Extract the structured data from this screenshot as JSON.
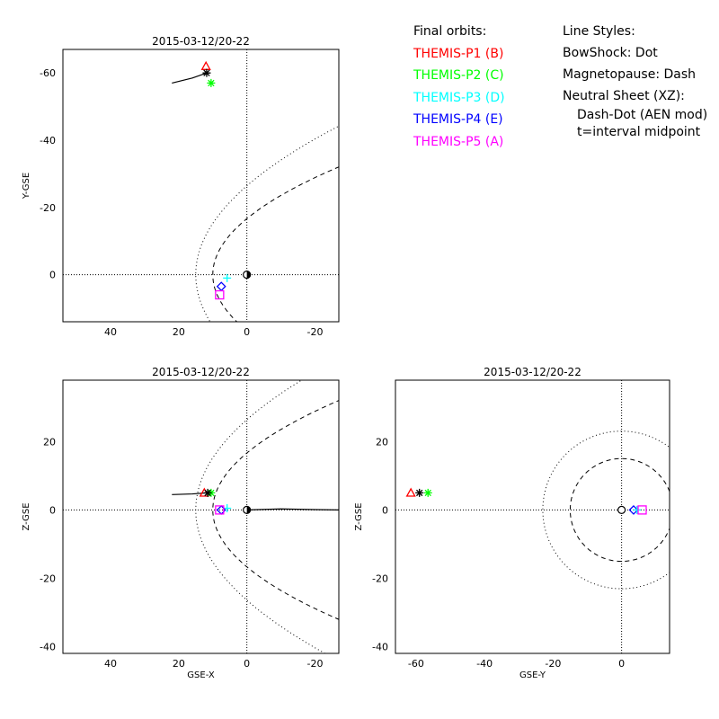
{
  "legend": {
    "orbits_heading": "Final orbits:",
    "probes": [
      {
        "label": "THEMIS-P1 (B)",
        "color": "#ff0000",
        "symbol": "triangle"
      },
      {
        "label": "THEMIS-P2 (C)",
        "color": "#00ff00",
        "symbol": "asterisk"
      },
      {
        "label": "THEMIS-P3 (D)",
        "color": "#00ffff",
        "symbol": "plus"
      },
      {
        "label": "THEMIS-P4 (E)",
        "color": "#0000ff",
        "symbol": "diamond"
      },
      {
        "label": "THEMIS-P5 (A)",
        "color": "#ff00ff",
        "symbol": "square"
      }
    ],
    "styles_heading": "Line Styles:",
    "styles": [
      "BowShock: Dot",
      "Magnetopause: Dash",
      "Neutral Sheet (XZ):"
    ],
    "styles_sub": [
      "Dash-Dot (AEN mod)",
      "t=interval midpoint"
    ]
  },
  "chart_data": [
    {
      "type": "scatter",
      "id": "xy",
      "title": "2015-03-12/20-22",
      "xlabel": "",
      "ylabel": "Y-GSE",
      "xlim": [
        54,
        -27
      ],
      "ylim": [
        14,
        -67
      ],
      "xticks": [
        40,
        20,
        0,
        -20
      ],
      "yticks": [
        -60,
        -40,
        -20,
        0
      ],
      "series": [
        {
          "color": "#ff0000",
          "symbol": "triangle",
          "x": [
            12
          ],
          "y": [
            -62
          ]
        },
        {
          "color": "#00ff00",
          "symbol": "asterisk",
          "x": [
            10.5
          ],
          "y": [
            -57
          ]
        },
        {
          "color": "#000000",
          "symbol": "asterisk",
          "x": [
            11.8
          ],
          "y": [
            -60
          ]
        },
        {
          "color": "#00ffff",
          "symbol": "plus",
          "x": [
            5.8
          ],
          "y": [
            1
          ]
        },
        {
          "color": "#0000ff",
          "symbol": "diamond",
          "x": [
            7.5
          ],
          "y": [
            3.5
          ]
        },
        {
          "color": "#ff00ff",
          "symbol": "square",
          "x": [
            8
          ],
          "y": [
            6
          ]
        }
      ],
      "orbit_trail": {
        "x": [
          11.8,
          16,
          22
        ],
        "y": [
          -60,
          -58.5,
          -57
        ]
      },
      "earth": {
        "x": 0,
        "y": 0
      }
    },
    {
      "type": "scatter",
      "id": "xz",
      "title": "2015-03-12/20-22",
      "xlabel": "GSE-X",
      "ylabel": "Z-GSE",
      "xlim": [
        54,
        -27
      ],
      "ylim": [
        -42,
        38
      ],
      "xticks": [
        40,
        20,
        0,
        -20
      ],
      "yticks": [
        -40,
        -20,
        0,
        20
      ],
      "series": [
        {
          "color": "#ff0000",
          "symbol": "triangle",
          "x": [
            12.5
          ],
          "y": [
            5
          ]
        },
        {
          "color": "#00ff00",
          "symbol": "asterisk",
          "x": [
            10.5
          ],
          "y": [
            5
          ]
        },
        {
          "color": "#000000",
          "symbol": "asterisk",
          "x": [
            11.5
          ],
          "y": [
            5
          ]
        },
        {
          "color": "#00ffff",
          "symbol": "plus",
          "x": [
            5.8
          ],
          "y": [
            0.5
          ]
        },
        {
          "color": "#0000ff",
          "symbol": "diamond",
          "x": [
            7.5
          ],
          "y": [
            0
          ]
        },
        {
          "color": "#ff00ff",
          "symbol": "square",
          "x": [
            8
          ],
          "y": [
            0
          ]
        }
      ],
      "orbit_trail": {
        "x": [
          11.5,
          16,
          22
        ],
        "y": [
          5,
          4.7,
          4.5
        ]
      },
      "neutral_sheet": {
        "x": [
          0,
          -10,
          -20,
          -27
        ],
        "y": [
          0,
          0.3,
          0.1,
          0
        ]
      },
      "earth": {
        "x": 0,
        "y": 0
      }
    },
    {
      "type": "scatter",
      "id": "yz",
      "title": "2015-03-12/20-22",
      "xlabel": "GSE-Y",
      "ylabel": "Z-GSE",
      "xlim": [
        -66,
        14
      ],
      "ylim": [
        -42,
        38
      ],
      "xticks": [
        -60,
        -40,
        -20,
        0
      ],
      "yticks": [
        -40,
        -20,
        0,
        20
      ],
      "series": [
        {
          "color": "#ff0000",
          "symbol": "triangle",
          "x": [
            -61.5
          ],
          "y": [
            5
          ]
        },
        {
          "color": "#00ff00",
          "symbol": "asterisk",
          "x": [
            -56.5
          ],
          "y": [
            5
          ]
        },
        {
          "color": "#000000",
          "symbol": "asterisk",
          "x": [
            -59
          ],
          "y": [
            5
          ]
        },
        {
          "color": "#0000ff",
          "symbol": "diamond",
          "x": [
            3.5
          ],
          "y": [
            0
          ]
        },
        {
          "color": "#00ffff",
          "symbol": "plus",
          "x": [
            4.5
          ],
          "y": [
            0
          ]
        },
        {
          "color": "#ff00ff",
          "symbol": "square",
          "x": [
            6
          ],
          "y": [
            0
          ]
        }
      ],
      "bowshock_radius": 23,
      "magnetopause_radius": 15,
      "earth": {
        "x": 0,
        "y": 0
      }
    }
  ]
}
